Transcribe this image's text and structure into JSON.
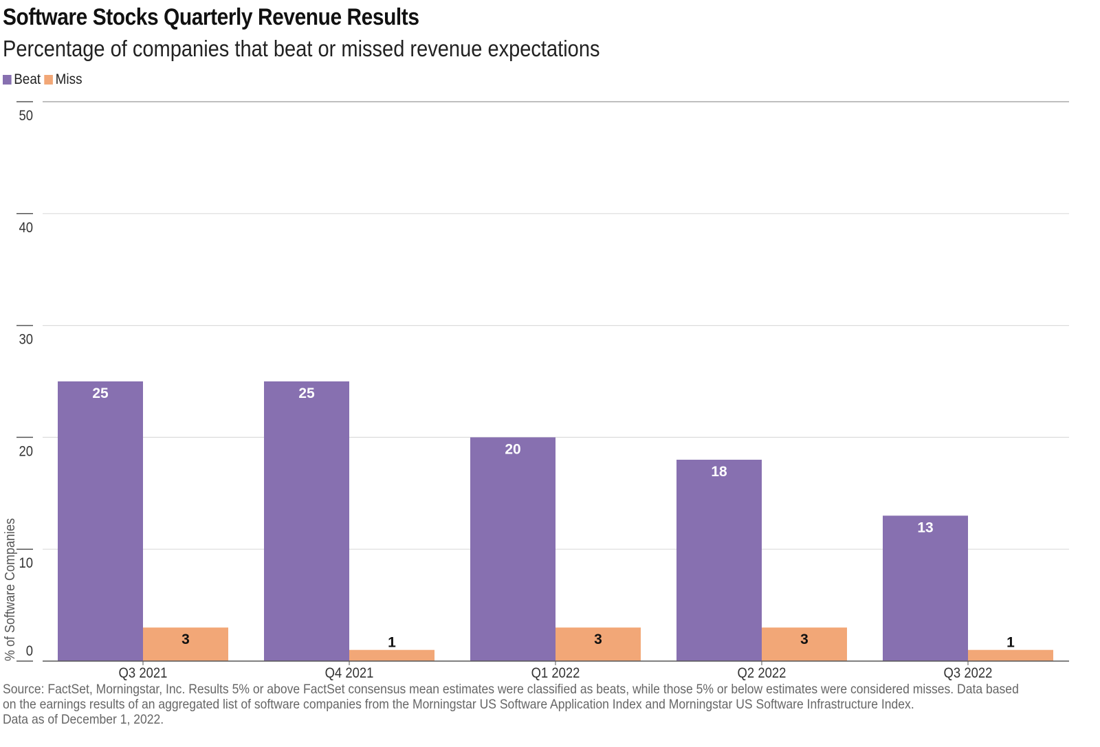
{
  "chart_data": {
    "type": "bar",
    "title": "Software Stocks Quarterly Revenue Results",
    "subtitle": "Percentage of companies that beat or missed revenue expectations",
    "categories": [
      "Q3 2021",
      "Q4 2021",
      "Q1 2022",
      "Q2 2022",
      "Q3 2022"
    ],
    "series": [
      {
        "name": "Beat",
        "values": [
          25,
          25,
          20,
          18,
          13
        ],
        "color": "#8770b0",
        "label_color": "#ffffff"
      },
      {
        "name": "Miss",
        "values": [
          3,
          1,
          3,
          3,
          1
        ],
        "color": "#f2a777",
        "label_color": "#111111"
      }
    ],
    "ylabel": "% of Software Companies",
    "xlabel": "",
    "ylim": [
      0,
      50
    ],
    "yticks": [
      0,
      10,
      20,
      30,
      40,
      50
    ],
    "grid": true,
    "legend_position": "top-left"
  },
  "footnote": {
    "line1": "Source: FactSet, Morningstar, Inc. Results 5% or above FactSet consensus mean estimates were classified as beats, while those 5% or below estimates were considered misses. Data based",
    "line2": "on the earnings results of an aggregated list of software companies from the Morningstar US Software Application Index and Morningstar US Software Infrastructure Index.",
    "line3": "Data as of December 1, 2022."
  }
}
